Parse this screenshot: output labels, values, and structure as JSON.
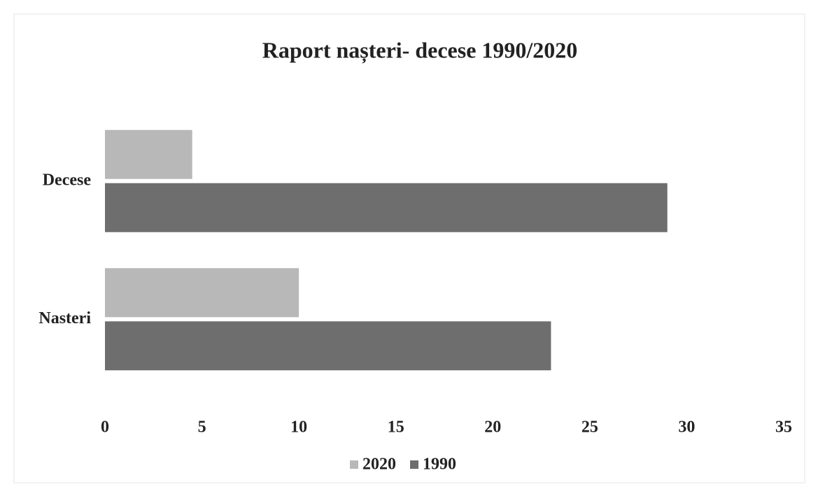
{
  "chart_data": {
    "type": "bar",
    "orientation": "horizontal",
    "title": "Raport nașteri- decese 1990/2020",
    "categories": [
      "Decese",
      "Nasteri"
    ],
    "series": [
      {
        "name": "2020",
        "color": "#b8b8b8",
        "values": [
          4.5,
          10
        ]
      },
      {
        "name": "1990",
        "color": "#6e6e6e",
        "values": [
          29,
          23
        ]
      }
    ],
    "xlim": [
      0,
      35
    ],
    "xticks": [
      0,
      5,
      10,
      15,
      20,
      25,
      30,
      35
    ],
    "grid": false,
    "legend": "bottom"
  }
}
